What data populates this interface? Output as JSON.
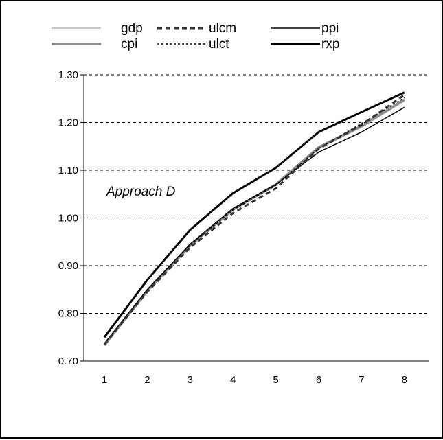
{
  "chart_data": {
    "type": "line",
    "title": "",
    "xlabel": "",
    "ylabel": "",
    "x": [
      1,
      2,
      3,
      4,
      5,
      6,
      7,
      8
    ],
    "ylim": [
      0.7,
      1.3
    ],
    "yticks": [
      "0.70",
      "0.80",
      "0.90",
      "1.00",
      "1.10",
      "1.20",
      "1.30"
    ],
    "xticks": [
      "1",
      "2",
      "3",
      "4",
      "5",
      "6",
      "7",
      "8"
    ],
    "grid": "horizontal dashed",
    "legend": "top",
    "annotation": "Approach D",
    "series": [
      {
        "name": "gdp",
        "color": "#b4b4b4",
        "style": "solid-thin",
        "values": [
          0.735,
          0.845,
          0.94,
          1.015,
          1.068,
          1.145,
          1.19,
          1.245
        ]
      },
      {
        "name": "ulcm",
        "color": "#333333",
        "style": "dashed-thick",
        "values": [
          0.735,
          0.845,
          0.938,
          1.01,
          1.062,
          1.145,
          1.195,
          1.258
        ]
      },
      {
        "name": "ppi",
        "color": "#000000",
        "style": "solid-thin",
        "values": [
          0.737,
          0.85,
          0.945,
          1.02,
          1.07,
          1.138,
          1.18,
          1.232
        ]
      },
      {
        "name": "cpi",
        "color": "#8c8c8c",
        "style": "solid-thick",
        "values": [
          0.733,
          0.847,
          0.942,
          1.018,
          1.07,
          1.148,
          1.193,
          1.248
        ]
      },
      {
        "name": "ulct",
        "color": "#000000",
        "style": "dotted",
        "values": [
          0.736,
          0.85,
          0.943,
          1.017,
          1.068,
          1.146,
          1.198,
          1.252
        ]
      },
      {
        "name": "rxp",
        "color": "#000000",
        "style": "solid-bold",
        "values": [
          0.75,
          0.87,
          0.975,
          1.052,
          1.105,
          1.18,
          1.222,
          1.263
        ]
      }
    ]
  }
}
